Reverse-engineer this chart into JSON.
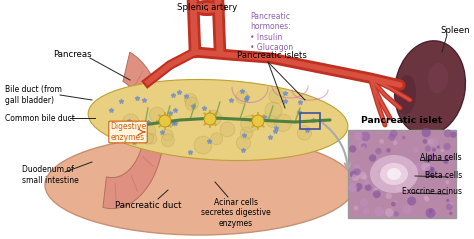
{
  "bg_color": "#ffffff",
  "labels": {
    "splenic_artery": "Splenic artery",
    "pancreatic_hormones": "Pancreatic\nhormones:\n• Insulin\n• Glucagon",
    "pancreas": "Pancreas",
    "pancreatic_islets": "Pancreatic islets",
    "spleen": "Spleen",
    "bile_duct": "Bile duct (from\ngall bladder)",
    "common_bile_duct": "Common bile duct",
    "digestive_enzymes": "Digestive\nenzymes",
    "duodenum": "Duodenum of\nsmall intestine",
    "pancreatic_duct": "Pancreatic duct",
    "acinar_cells": "Acinar cells\nsecretes digestive\nenzymes",
    "pancreatic_islet": "Pancreatic islet",
    "alpha_cells": "Alpha cells",
    "beta_cells": "Beta cells",
    "exocrine_acinus": "Exocrine acinus"
  },
  "colors": {
    "pancreas_body": "#e8d080",
    "pancreas_edge": "#c0a030",
    "artery_red": "#c03020",
    "artery_light": "#d85040",
    "duct_green": "#508040",
    "duct_green2": "#70a050",
    "duodenum_pink": "#e09080",
    "duodenum_inner": "#d07868",
    "spleen_dark": "#6b3540",
    "spleen_mid": "#804050",
    "hormone_text": "#9060b0",
    "digestive_text": "#d06010",
    "bg": "#ffffff",
    "label_line": "#222222",
    "islet_bg": "#c090b0",
    "islet_center": "#e8c8d8",
    "belly_pink": "#e8b090",
    "belly_edge": "#c89070"
  }
}
